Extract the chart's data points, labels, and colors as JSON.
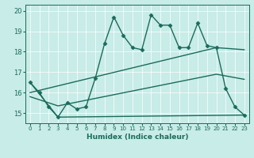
{
  "xlabel": "Humidex (Indice chaleur)",
  "xlim": [
    -0.5,
    23.5
  ],
  "ylim": [
    14.5,
    20.3
  ],
  "xticks": [
    0,
    1,
    2,
    3,
    4,
    5,
    6,
    7,
    8,
    9,
    10,
    11,
    12,
    13,
    14,
    15,
    16,
    17,
    18,
    19,
    20,
    21,
    22,
    23
  ],
  "yticks": [
    15,
    16,
    17,
    18,
    19,
    20
  ],
  "bg_color": "#c8ece8",
  "line_color": "#1a6b5a",
  "series": [
    {
      "x": [
        0,
        1,
        2,
        3,
        4,
        5,
        6,
        7,
        8,
        9,
        10,
        11,
        12,
        13,
        14,
        15,
        16,
        17,
        18,
        19,
        20,
        21,
        22,
        23
      ],
      "y": [
        16.5,
        16.0,
        15.3,
        14.8,
        15.5,
        15.2,
        15.3,
        16.7,
        18.4,
        19.7,
        18.8,
        18.2,
        18.1,
        19.8,
        19.3,
        19.3,
        18.2,
        18.2,
        19.4,
        18.3,
        18.2,
        16.2,
        15.3,
        14.9
      ],
      "marker": "D",
      "markersize": 2.5,
      "linewidth": 1.0
    },
    {
      "x": [
        0,
        3,
        23
      ],
      "y": [
        16.5,
        14.8,
        14.9
      ],
      "marker": null,
      "linewidth": 1.0
    },
    {
      "x": [
        0,
        3,
        20,
        23
      ],
      "y": [
        15.8,
        15.35,
        16.9,
        16.65
      ],
      "marker": null,
      "linewidth": 1.0
    },
    {
      "x": [
        0,
        20,
        23
      ],
      "y": [
        16.0,
        18.2,
        18.1
      ],
      "marker": null,
      "linewidth": 1.0
    }
  ]
}
